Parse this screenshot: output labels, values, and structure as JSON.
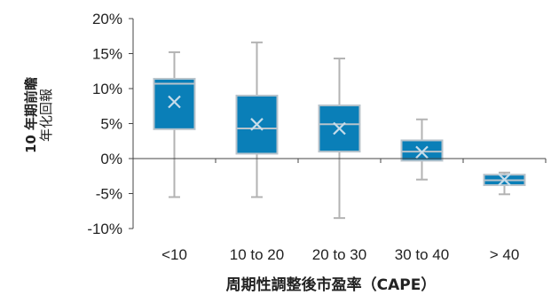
{
  "chart_data": {
    "type": "box",
    "xlabel": "周期性調整後市盈率（CAPE）",
    "ylabel_lines": [
      "10 年期前瞻",
      "年化回報"
    ],
    "yticks": [
      "20%",
      "15%",
      "10%",
      "5%",
      "0%",
      "-5%",
      "-10%"
    ],
    "ytick_values": [
      20,
      15,
      10,
      5,
      0,
      -5,
      -10
    ],
    "ylim": [
      -10,
      20
    ],
    "categories": [
      "<10",
      "10 to 20",
      "20 to 30",
      "30 to 40",
      "> 40"
    ],
    "boxes": [
      {
        "category": "<10",
        "min": -5.5,
        "q1": 4.2,
        "median": 10.7,
        "q3": 11.4,
        "max": 15.2,
        "mean": 8.1
      },
      {
        "category": "10 to 20",
        "min": -5.5,
        "q1": 0.7,
        "median": 4.3,
        "q3": 9.0,
        "max": 16.6,
        "mean": 4.9
      },
      {
        "category": "20 to 30",
        "min": -8.5,
        "q1": 1.0,
        "median": 4.9,
        "q3": 7.6,
        "max": 14.3,
        "mean": 4.3
      },
      {
        "category": "30 to 40",
        "min": -3.0,
        "q1": -0.3,
        "median": 1.0,
        "q3": 2.6,
        "max": 5.6,
        "mean": 0.9
      },
      {
        "category": "> 40",
        "min": -5.1,
        "q1": -3.8,
        "median": -3.1,
        "q3": -2.3,
        "max": -2.0,
        "mean": -3.0
      }
    ],
    "colors": {
      "box": "#0a7fb8",
      "box_edge": "#b8c3cb",
      "whisker": "#b3b3b3",
      "mean_marker": "#c6dcea",
      "axis": "#444444"
    }
  }
}
